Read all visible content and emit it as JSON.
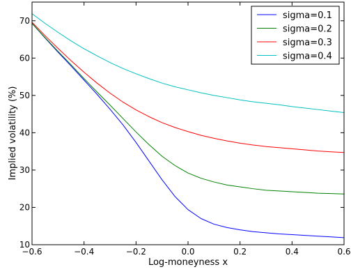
{
  "chart_data": {
    "type": "line",
    "title": "",
    "xlabel": "Log-moneyness x",
    "ylabel": "Implied volatility (%)",
    "xlim": [
      -0.6,
      0.6
    ],
    "ylim": [
      10,
      75
    ],
    "xticks": [
      -0.6,
      -0.4,
      -0.2,
      0.0,
      0.2,
      0.4,
      0.6
    ],
    "xtick_labels": [
      "−0.6",
      "−0.4",
      "−0.2",
      "0.0",
      "0.2",
      "0.4",
      "0.6"
    ],
    "yticks": [
      10,
      20,
      30,
      40,
      50,
      60,
      70
    ],
    "ytick_labels": [
      "10",
      "20",
      "30",
      "40",
      "50",
      "60",
      "70"
    ],
    "grid": false,
    "legend_position": "top-right",
    "x": [
      -0.6,
      -0.55,
      -0.5,
      -0.45,
      -0.4,
      -0.35,
      -0.3,
      -0.25,
      -0.2,
      -0.15,
      -0.1,
      -0.05,
      0.0,
      0.05,
      0.1,
      0.15,
      0.2,
      0.25,
      0.3,
      0.35,
      0.4,
      0.45,
      0.5,
      0.55,
      0.6
    ],
    "series": [
      {
        "name": "sigma=0.1",
        "color": "#0000ff",
        "values": [
          69.3,
          65.4,
          61.6,
          57.9,
          54.1,
          50.3,
          46.3,
          42.1,
          37.4,
          32.4,
          27.4,
          22.9,
          19.4,
          17.0,
          15.5,
          14.6,
          14.0,
          13.5,
          13.2,
          12.9,
          12.7,
          12.5,
          12.3,
          12.1,
          11.9
        ]
      },
      {
        "name": "sigma=0.2",
        "color": "#008000",
        "values": [
          69.3,
          65.5,
          61.8,
          58.2,
          54.5,
          50.9,
          47.4,
          43.8,
          40.2,
          36.8,
          33.7,
          31.2,
          29.2,
          27.8,
          26.8,
          26.0,
          25.5,
          25.0,
          24.6,
          24.4,
          24.2,
          24.0,
          23.8,
          23.7,
          23.6
        ]
      },
      {
        "name": "sigma=0.3",
        "color": "#ff0000",
        "values": [
          69.6,
          66.0,
          62.6,
          59.3,
          56.2,
          53.3,
          50.6,
          48.2,
          46.1,
          44.3,
          42.7,
          41.4,
          40.3,
          39.3,
          38.5,
          37.8,
          37.2,
          36.7,
          36.3,
          36.0,
          35.7,
          35.4,
          35.1,
          34.9,
          34.7
        ]
      },
      {
        "name": "sigma=0.4",
        "color": "#00bfbf",
        "values": [
          71.9,
          69.3,
          66.9,
          64.6,
          62.5,
          60.6,
          58.8,
          57.2,
          55.8,
          54.5,
          53.3,
          52.3,
          51.5,
          50.7,
          50.0,
          49.4,
          48.8,
          48.3,
          47.9,
          47.5,
          47.0,
          46.6,
          46.2,
          45.8,
          45.4
        ]
      }
    ]
  }
}
